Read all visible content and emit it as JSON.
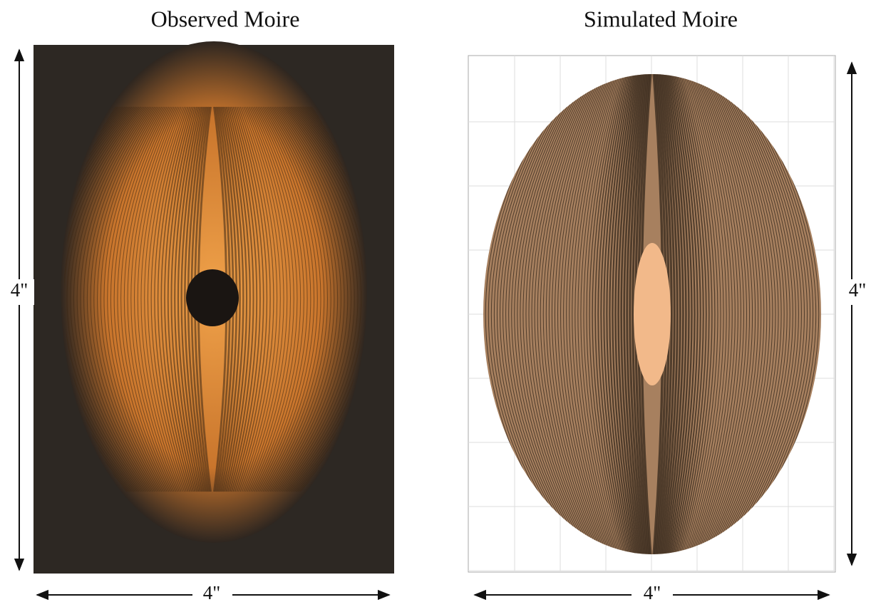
{
  "panels": [
    {
      "title": "Observed Moire",
      "height_label": "4\"",
      "width_label": "4\""
    },
    {
      "title": "Simulated Moire",
      "height_label": "4\"",
      "width_label": "4\""
    }
  ]
}
